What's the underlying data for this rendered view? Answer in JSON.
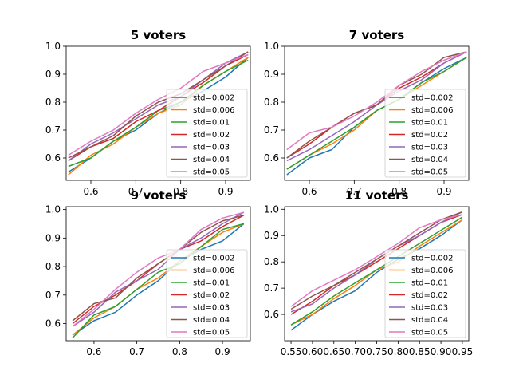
{
  "legend_position": "lower right",
  "chart_data": [
    {
      "type": "line",
      "title": "5 voters",
      "xlabel": "",
      "ylabel": "",
      "xlim": [
        0.545,
        0.955
      ],
      "ylim": [
        0.52,
        1.0
      ],
      "xticks": [
        0.6,
        0.7,
        0.8,
        0.9
      ],
      "xtick_labels": [
        "0.6",
        "0.7",
        "0.8",
        "0.9"
      ],
      "yticks": [
        0.6,
        0.7,
        0.8,
        0.9,
        1.0
      ],
      "ytick_labels": [
        "0.6",
        "0.7",
        "0.8",
        "0.9",
        "1.0"
      ],
      "x": [
        0.55,
        0.6,
        0.65,
        0.7,
        0.75,
        0.8,
        0.85,
        0.9,
        0.95
      ],
      "series": [
        {
          "name": "std=0.002",
          "color": "#1f77b4",
          "values": [
            0.55,
            0.6,
            0.66,
            0.7,
            0.76,
            0.8,
            0.84,
            0.89,
            0.96
          ]
        },
        {
          "name": "std=0.006",
          "color": "#ff7f0e",
          "values": [
            0.54,
            0.61,
            0.65,
            0.71,
            0.76,
            0.79,
            0.86,
            0.91,
            0.96
          ]
        },
        {
          "name": "std=0.01",
          "color": "#2ca02c",
          "values": [
            0.57,
            0.6,
            0.66,
            0.71,
            0.77,
            0.8,
            0.86,
            0.91,
            0.95
          ]
        },
        {
          "name": "std=0.02",
          "color": "#d62728",
          "values": [
            0.59,
            0.64,
            0.67,
            0.73,
            0.77,
            0.82,
            0.87,
            0.93,
            0.97
          ]
        },
        {
          "name": "std=0.03",
          "color": "#9467bd",
          "values": [
            0.59,
            0.65,
            0.69,
            0.74,
            0.79,
            0.82,
            0.88,
            0.94,
            0.98
          ]
        },
        {
          "name": "std=0.04",
          "color": "#8c564b",
          "values": [
            0.6,
            0.64,
            0.68,
            0.75,
            0.8,
            0.83,
            0.88,
            0.93,
            0.98
          ]
        },
        {
          "name": "std=0.05",
          "color": "#e377c2",
          "values": [
            0.61,
            0.66,
            0.7,
            0.76,
            0.81,
            0.85,
            0.91,
            0.94,
            0.97
          ]
        }
      ]
    },
    {
      "type": "line",
      "title": "7 voters",
      "xlabel": "",
      "ylabel": "",
      "xlim": [
        0.545,
        0.955
      ],
      "ylim": [
        0.52,
        1.0
      ],
      "xticks": [
        0.6,
        0.7,
        0.8,
        0.9
      ],
      "xtick_labels": [
        "0.6",
        "0.7",
        "0.8",
        "0.9"
      ],
      "yticks": [
        0.6,
        0.7,
        0.8,
        0.9,
        1.0
      ],
      "ytick_labels": [
        "0.6",
        "0.7",
        "0.8",
        "0.9",
        "1.0"
      ],
      "x": [
        0.55,
        0.6,
        0.65,
        0.7,
        0.75,
        0.8,
        0.85,
        0.9,
        0.95
      ],
      "series": [
        {
          "name": "std=0.002",
          "color": "#1f77b4",
          "values": [
            0.54,
            0.6,
            0.63,
            0.71,
            0.77,
            0.81,
            0.87,
            0.92,
            0.96
          ]
        },
        {
          "name": "std=0.006",
          "color": "#ff7f0e",
          "values": [
            0.56,
            0.61,
            0.65,
            0.7,
            0.77,
            0.81,
            0.86,
            0.91,
            0.96
          ]
        },
        {
          "name": "std=0.01",
          "color": "#2ca02c",
          "values": [
            0.56,
            0.61,
            0.66,
            0.71,
            0.77,
            0.81,
            0.87,
            0.91,
            0.96
          ]
        },
        {
          "name": "std=0.02",
          "color": "#d62728",
          "values": [
            0.6,
            0.65,
            0.71,
            0.76,
            0.79,
            0.85,
            0.89,
            0.94,
            0.98
          ]
        },
        {
          "name": "std=0.03",
          "color": "#9467bd",
          "values": [
            0.59,
            0.63,
            0.68,
            0.73,
            0.79,
            0.84,
            0.88,
            0.94,
            0.98
          ]
        },
        {
          "name": "std=0.04",
          "color": "#8c564b",
          "values": [
            0.6,
            0.66,
            0.71,
            0.76,
            0.79,
            0.86,
            0.9,
            0.96,
            0.98
          ]
        },
        {
          "name": "std=0.05",
          "color": "#e377c2",
          "values": [
            0.63,
            0.69,
            0.71,
            0.75,
            0.8,
            0.86,
            0.91,
            0.95,
            0.98
          ]
        }
      ]
    },
    {
      "type": "line",
      "title": "9 voters",
      "xlabel": "",
      "ylabel": "",
      "xlim": [
        0.535,
        0.965
      ],
      "ylim": [
        0.54,
        1.01
      ],
      "xticks": [
        0.6,
        0.7,
        0.8,
        0.9
      ],
      "xtick_labels": [
        "0.6",
        "0.7",
        "0.8",
        "0.9"
      ],
      "yticks": [
        0.6,
        0.7,
        0.8,
        0.9,
        1.0
      ],
      "ytick_labels": [
        "0.6",
        "0.7",
        "0.8",
        "0.9",
        "1.0"
      ],
      "x": [
        0.55,
        0.6,
        0.65,
        0.7,
        0.75,
        0.8,
        0.85,
        0.9,
        0.95
      ],
      "series": [
        {
          "name": "std=0.002",
          "color": "#1f77b4",
          "values": [
            0.56,
            0.61,
            0.64,
            0.7,
            0.75,
            0.82,
            0.86,
            0.89,
            0.95
          ]
        },
        {
          "name": "std=0.006",
          "color": "#ff7f0e",
          "values": [
            0.56,
            0.62,
            0.66,
            0.72,
            0.76,
            0.82,
            0.87,
            0.92,
            0.95
          ]
        },
        {
          "name": "std=0.01",
          "color": "#2ca02c",
          "values": [
            0.55,
            0.63,
            0.66,
            0.72,
            0.78,
            0.81,
            0.87,
            0.93,
            0.95
          ]
        },
        {
          "name": "std=0.02",
          "color": "#d62728",
          "values": [
            0.6,
            0.66,
            0.7,
            0.75,
            0.81,
            0.86,
            0.89,
            0.94,
            0.98
          ]
        },
        {
          "name": "std=0.03",
          "color": "#9467bd",
          "values": [
            0.59,
            0.64,
            0.71,
            0.75,
            0.79,
            0.86,
            0.9,
            0.95,
            0.99
          ]
        },
        {
          "name": "std=0.04",
          "color": "#8c564b",
          "values": [
            0.61,
            0.67,
            0.69,
            0.76,
            0.81,
            0.86,
            0.92,
            0.96,
            0.98
          ]
        },
        {
          "name": "std=0.05",
          "color": "#e377c2",
          "values": [
            0.59,
            0.65,
            0.72,
            0.78,
            0.83,
            0.86,
            0.93,
            0.97,
            0.99
          ]
        }
      ]
    },
    {
      "type": "line",
      "title": "11 voters",
      "xlabel": "",
      "ylabel": "",
      "xlim": [
        0.535,
        0.965
      ],
      "ylim": [
        0.5,
        1.01
      ],
      "xticks": [
        0.55,
        0.6,
        0.65,
        0.7,
        0.75,
        0.8,
        0.85,
        0.9,
        0.95
      ],
      "xtick_labels": [
        "0.55",
        "0.60",
        "0.65",
        "0.70",
        "0.75",
        "0.80",
        "0.85",
        "0.90",
        "0.95"
      ],
      "yticks": [
        0.6,
        0.7,
        0.8,
        0.9,
        1.0
      ],
      "ytick_labels": [
        "0.6",
        "0.7",
        "0.8",
        "0.9",
        "1.0"
      ],
      "x": [
        0.55,
        0.6,
        0.65,
        0.7,
        0.75,
        0.8,
        0.85,
        0.9,
        0.95
      ],
      "series": [
        {
          "name": "std=0.002",
          "color": "#1f77b4",
          "values": [
            0.54,
            0.6,
            0.65,
            0.69,
            0.76,
            0.81,
            0.85,
            0.9,
            0.96
          ]
        },
        {
          "name": "std=0.006",
          "color": "#ff7f0e",
          "values": [
            0.56,
            0.6,
            0.66,
            0.71,
            0.77,
            0.8,
            0.86,
            0.91,
            0.96
          ]
        },
        {
          "name": "std=0.01",
          "color": "#2ca02c",
          "values": [
            0.56,
            0.61,
            0.67,
            0.72,
            0.77,
            0.82,
            0.87,
            0.92,
            0.97
          ]
        },
        {
          "name": "std=0.02",
          "color": "#d62728",
          "values": [
            0.6,
            0.65,
            0.71,
            0.75,
            0.8,
            0.85,
            0.9,
            0.95,
            0.98
          ]
        },
        {
          "name": "std=0.03",
          "color": "#9467bd",
          "values": [
            0.61,
            0.64,
            0.7,
            0.75,
            0.81,
            0.86,
            0.9,
            0.95,
            0.99
          ]
        },
        {
          "name": "std=0.04",
          "color": "#8c564b",
          "values": [
            0.62,
            0.67,
            0.71,
            0.76,
            0.81,
            0.86,
            0.91,
            0.96,
            0.99
          ]
        },
        {
          "name": "std=0.05",
          "color": "#e377c2",
          "values": [
            0.63,
            0.69,
            0.73,
            0.77,
            0.82,
            0.87,
            0.93,
            0.96,
            0.98
          ]
        }
      ]
    }
  ]
}
